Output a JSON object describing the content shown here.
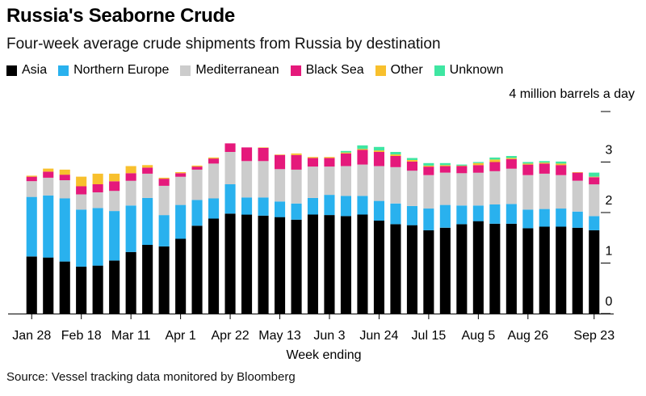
{
  "title": "Russia's Seaborne Crude",
  "subtitle": "Four-week average crude shipments from Russia by destination",
  "unit_label": "4 million barrels a day",
  "source": "Source: Vessel tracking data monitored by Bloomberg",
  "chart_data": {
    "type": "bar",
    "stacked": true,
    "title": "Russia's Seaborne Crude",
    "subtitle": "Four-week average crude shipments from Russia by destination",
    "xlabel": "Week ending",
    "ylabel": "",
    "ylim": [
      0,
      4
    ],
    "yticks": [
      0,
      1,
      2,
      3
    ],
    "grid": false,
    "legend_position": "top-left",
    "x_tick_labels": [
      "Jan 28",
      "Feb 18",
      "Mar 11",
      "Apr 1",
      "Apr 22",
      "May 13",
      "Jun 3",
      "Jun 24",
      "Jul 15",
      "Aug 5",
      "Aug 26",
      "Sep 23"
    ],
    "x_tick_indices": [
      0,
      3,
      6,
      9,
      12,
      15,
      18,
      21,
      24,
      27,
      30,
      34
    ],
    "series": [
      {
        "name": "Asia",
        "color": "#000000",
        "values": [
          1.13,
          1.11,
          1.03,
          0.93,
          0.95,
          1.05,
          1.22,
          1.36,
          1.33,
          1.48,
          1.74,
          1.88,
          1.98,
          1.96,
          1.94,
          1.91,
          1.86,
          1.96,
          1.95,
          1.93,
          1.96,
          1.84,
          1.77,
          1.75,
          1.65,
          1.7,
          1.77,
          1.83,
          1.78,
          1.78,
          1.69,
          1.72,
          1.72,
          1.7,
          1.65
        ]
      },
      {
        "name": "Northern Europe",
        "color": "#29B1EE",
        "values": [
          1.18,
          1.23,
          1.25,
          1.13,
          1.14,
          0.98,
          0.92,
          0.93,
          0.62,
          0.67,
          0.51,
          0.4,
          0.58,
          0.34,
          0.36,
          0.31,
          0.32,
          0.33,
          0.4,
          0.4,
          0.37,
          0.39,
          0.41,
          0.38,
          0.43,
          0.45,
          0.37,
          0.31,
          0.38,
          0.39,
          0.37,
          0.35,
          0.36,
          0.32,
          0.28
        ]
      },
      {
        "name": "Mediterranean",
        "color": "#CCCCCC",
        "values": [
          0.31,
          0.35,
          0.36,
          0.3,
          0.31,
          0.4,
          0.49,
          0.48,
          0.58,
          0.56,
          0.6,
          0.69,
          0.64,
          0.72,
          0.72,
          0.64,
          0.67,
          0.62,
          0.56,
          0.59,
          0.62,
          0.69,
          0.72,
          0.7,
          0.66,
          0.64,
          0.64,
          0.65,
          0.66,
          0.7,
          0.68,
          0.7,
          0.66,
          0.61,
          0.63
        ]
      },
      {
        "name": "Black Sea",
        "color": "#E5197B",
        "values": [
          0.09,
          0.12,
          0.11,
          0.16,
          0.16,
          0.19,
          0.15,
          0.12,
          0.14,
          0.07,
          0.06,
          0.1,
          0.17,
          0.27,
          0.26,
          0.28,
          0.29,
          0.17,
          0.17,
          0.25,
          0.29,
          0.28,
          0.22,
          0.18,
          0.17,
          0.13,
          0.14,
          0.15,
          0.18,
          0.19,
          0.21,
          0.2,
          0.2,
          0.16,
          0.14
        ]
      },
      {
        "name": "Other",
        "color": "#F8C02D",
        "values": [
          0.02,
          0.06,
          0.1,
          0.19,
          0.21,
          0.15,
          0.14,
          0.05,
          0.02,
          0.02,
          0.02,
          0.02,
          0.0,
          0.0,
          0.01,
          0.01,
          0.03,
          0.02,
          0.02,
          0.02,
          0.02,
          0.03,
          0.03,
          0.03,
          0.02,
          0.02,
          0.01,
          0.04,
          0.05,
          0.02,
          0.02,
          0.02,
          0.03,
          0.01,
          0.01
        ]
      },
      {
        "name": "Unknown",
        "color": "#3FE6A2",
        "values": [
          0.0,
          0.0,
          0.0,
          0.0,
          0.0,
          0.0,
          0.0,
          0.0,
          0.0,
          0.0,
          0.0,
          0.0,
          0.0,
          0.0,
          0.0,
          0.0,
          0.0,
          0.0,
          0.0,
          0.03,
          0.07,
          0.07,
          0.05,
          0.04,
          0.05,
          0.04,
          0.02,
          0.02,
          0.04,
          0.04,
          0.03,
          0.03,
          0.04,
          0.0,
          0.08
        ]
      }
    ]
  }
}
